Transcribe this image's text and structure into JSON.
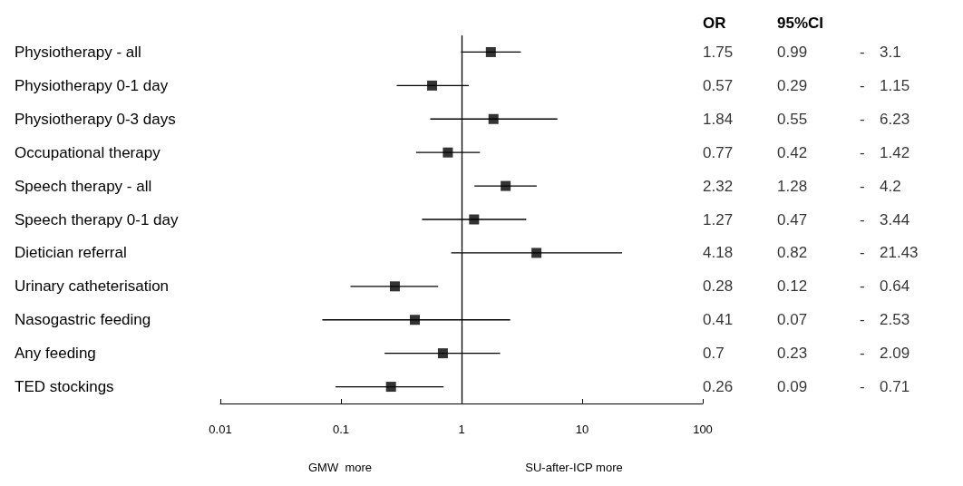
{
  "chart_data": {
    "type": "scatter",
    "orientation": "horizontal",
    "categories": [
      "Physiotherapy - all",
      "Physiotherapy 0-1 day",
      "Physiotherapy 0-3 days",
      "Occupational therapy",
      "Speech therapy - all",
      "Speech therapy 0-1 day",
      "Dietician referral",
      "Urinary catheterisation",
      "Nasogastric feeding",
      "Any feeding",
      "TED stockings"
    ],
    "values": [
      1.75,
      0.57,
      1.84,
      0.77,
      2.32,
      1.27,
      4.18,
      0.28,
      0.41,
      0.7,
      0.26
    ],
    "errors": [
      [
        0.99,
        3.1
      ],
      [
        0.29,
        1.15
      ],
      [
        0.55,
        6.23
      ],
      [
        0.42,
        1.42
      ],
      [
        1.28,
        4.2
      ],
      [
        0.47,
        3.44
      ],
      [
        0.82,
        21.43
      ],
      [
        0.12,
        0.64
      ],
      [
        0.07,
        2.53
      ],
      [
        0.23,
        2.09
      ],
      [
        0.09,
        0.71
      ]
    ],
    "value_labels": [
      "1.75 0.99 - 3.1",
      "0.57 0.29 - 1.15",
      "1.84 0.55 - 6.23",
      "0.77 0.42 - 1.42",
      "2.32 1.28 - 4.2",
      "1.27 0.47 - 3.44",
      "4.18 0.82 - 21.43",
      "0.28 0.12 - 0.64",
      "0.41 0.07 - 2.53",
      "0.7 0.23 - 2.09",
      "0.26 0.09 - 0.71"
    ],
    "color": "#000000",
    "marker": "square",
    "log": "x",
    "xlim": [
      0.01,
      100
    ],
    "xticks": [
      0.01,
      0.1,
      1,
      10,
      100
    ],
    "grid": false,
    "legend": false,
    "ref_lines": [
      {
        "axis": "x",
        "value": 1
      }
    ],
    "annotations": [
      "OR",
      "95%CI",
      "GMW  more",
      "SU-after-ICP more"
    ]
  }
}
